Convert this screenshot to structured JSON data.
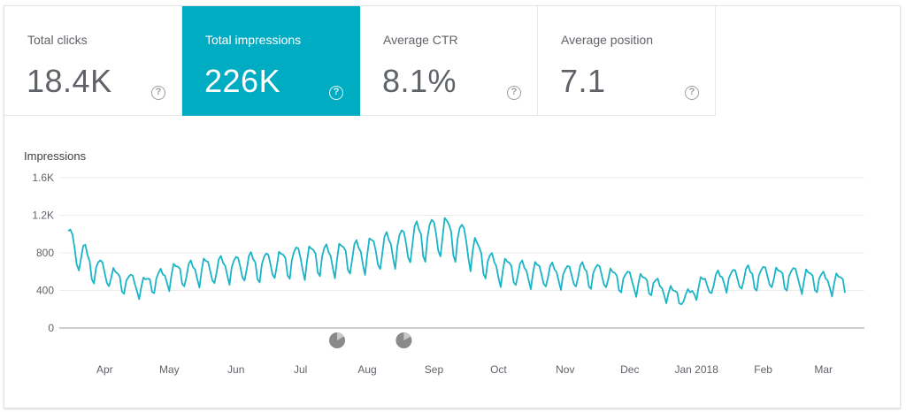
{
  "metrics": [
    {
      "label": "Total clicks",
      "value": "18.4K",
      "active": false
    },
    {
      "label": "Total impressions",
      "value": "226K",
      "active": true
    },
    {
      "label": "Average CTR",
      "value": "8.1%",
      "active": false
    },
    {
      "label": "Average position",
      "value": "7.1",
      "active": false
    }
  ],
  "help_glyph": "?",
  "colors": {
    "accent": "#00acc1",
    "line": "#1ab4c7"
  },
  "chart_data": {
    "type": "line",
    "title": "Impressions",
    "ylabel": "",
    "xlabel": "",
    "ylim": [
      0,
      1600
    ],
    "yticks": [
      0,
      400,
      800,
      1200,
      1600
    ],
    "ytick_labels": [
      "0",
      "400",
      "800",
      "1.2K",
      "1.6K"
    ],
    "xtick_labels": [
      {
        "label": "Apr",
        "day": 17
      },
      {
        "label": "May",
        "day": 47
      },
      {
        "label": "Jun",
        "day": 78
      },
      {
        "label": "Jul",
        "day": 108
      },
      {
        "label": "Aug",
        "day": 139
      },
      {
        "label": "Sep",
        "day": 170
      },
      {
        "label": "Oct",
        "day": 200
      },
      {
        "label": "Nov",
        "day": 231
      },
      {
        "label": "Dec",
        "day": 261
      },
      {
        "label": "Jan 2018",
        "day": 292
      },
      {
        "label": "Feb",
        "day": 323
      },
      {
        "label": "Mar",
        "day": 351
      }
    ],
    "x_days": 361,
    "annotation_days": [
      125,
      156
    ],
    "anchors": [
      [
        0,
        880
      ],
      [
        10,
        650
      ],
      [
        17,
        560
      ],
      [
        25,
        480
      ],
      [
        30,
        450
      ],
      [
        35,
        430
      ],
      [
        47,
        540
      ],
      [
        60,
        580
      ],
      [
        78,
        620
      ],
      [
        95,
        650
      ],
      [
        108,
        700
      ],
      [
        125,
        720
      ],
      [
        139,
        760
      ],
      [
        155,
        850
      ],
      [
        165,
        920
      ],
      [
        175,
        960
      ],
      [
        185,
        870
      ],
      [
        193,
        690
      ],
      [
        200,
        600
      ],
      [
        215,
        560
      ],
      [
        231,
        540
      ],
      [
        245,
        550
      ],
      [
        255,
        500
      ],
      [
        261,
        480
      ],
      [
        272,
        440
      ],
      [
        282,
        330
      ],
      [
        287,
        300
      ],
      [
        292,
        410
      ],
      [
        305,
        500
      ],
      [
        323,
        530
      ],
      [
        340,
        510
      ],
      [
        361,
        450
      ]
    ],
    "weekly_amplitude": 150
  }
}
